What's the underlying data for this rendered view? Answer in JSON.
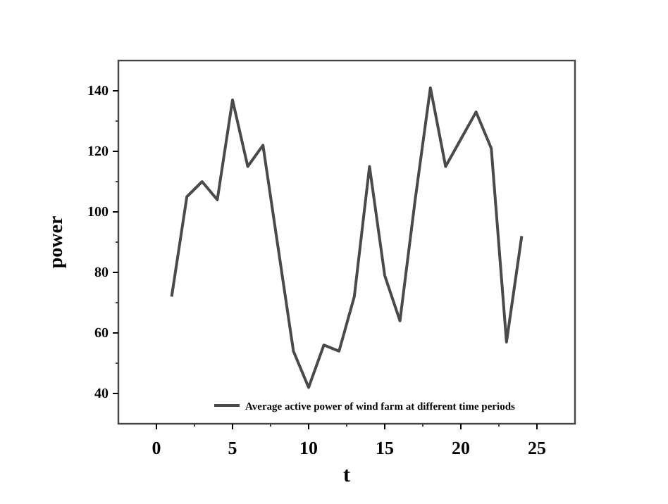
{
  "chart_data": {
    "type": "line",
    "xlabel": "t",
    "ylabel": "power",
    "x": [
      1,
      2,
      3,
      4,
      5,
      6,
      7,
      8,
      9,
      10,
      11,
      12,
      13,
      14,
      15,
      16,
      17,
      18,
      19,
      20,
      21,
      22,
      23,
      24
    ],
    "series": [
      {
        "name": "Average active power of wind farm at different time periods",
        "color": "#4a4a4a",
        "values": [
          72,
          105,
          110,
          104,
          137,
          115,
          122,
          88,
          54,
          42,
          56,
          54,
          72,
          115,
          79,
          64,
          104,
          141,
          115,
          124,
          133,
          121,
          57,
          92
        ]
      }
    ],
    "xlim": [
      -2.5,
      27.5
    ],
    "xticks": [
      0,
      5,
      10,
      15,
      20,
      25
    ],
    "ylim": [
      30,
      150
    ],
    "yticks": [
      40,
      60,
      80,
      100,
      120,
      140
    ],
    "grid": false,
    "legend": "bottom",
    "marker": "none",
    "line_style": "solid"
  }
}
